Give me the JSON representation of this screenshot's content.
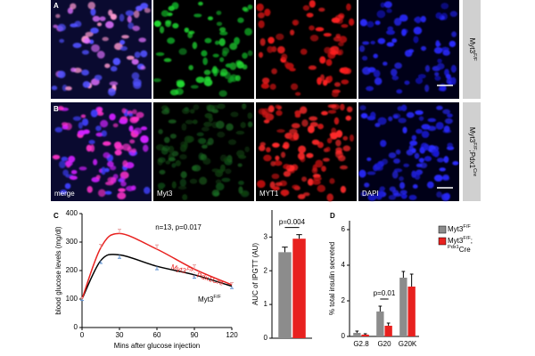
{
  "figure": {
    "panel_letters": [
      "A",
      "B",
      "C",
      "D"
    ],
    "row_labels": [
      [
        "Myt3",
        "F/F"
      ],
      [
        "Myt3",
        "F/F",
        ";Pdx1",
        "Cre"
      ]
    ],
    "channels": [
      "merge",
      "Myt3",
      "MYT1",
      "DAPI"
    ]
  },
  "chart_data": [
    {
      "type": "line",
      "xlabel": "Mins after glucose injection",
      "ylabel": "blood glucose levels (mg/dl)",
      "annotations": [
        [
          "n=13, p=0.017"
        ],
        [
          "Myt3",
          "F/F",
          "; Pdx1Cre"
        ],
        [
          "Myt3",
          "F/F"
        ]
      ],
      "x": [
        0,
        15,
        30,
        60,
        90,
        120
      ],
      "series": [
        {
          "name": [
            "Myt3",
            "F/F"
          ],
          "color": "#000000",
          "values": [
            100,
            235,
            255,
            215,
            185,
            145
          ],
          "errors": [
            5,
            10,
            12,
            12,
            12,
            8
          ]
        },
        {
          "name": [
            "Myt3",
            "F/F",
            "; Pdx1Cre"
          ],
          "color": "#e8211f",
          "values": [
            100,
            280,
            330,
            275,
            205,
            150
          ],
          "errors": [
            5,
            12,
            15,
            15,
            15,
            8
          ]
        }
      ],
      "xlim": [
        0,
        120
      ],
      "xticks": [
        0,
        30,
        60,
        90,
        120
      ],
      "ylim": [
        0,
        400
      ],
      "yticks": [
        0,
        100,
        200,
        300,
        400
      ]
    },
    {
      "type": "bar",
      "ylabel": "AUC of IPGTT (AU)",
      "annotations": [
        [
          "p=0.004"
        ]
      ],
      "categories": [
        null
      ],
      "series": [
        {
          "name": [
            "Myt3",
            "F/F"
          ],
          "color": "#8c8c8c",
          "values": [
            2.55
          ],
          "errors": [
            0.15
          ]
        },
        {
          "name": [
            "Myt3",
            "F/F",
            ";Pdx1",
            "Cre"
          ],
          "color": "#e8211f",
          "values": [
            2.95
          ],
          "errors": [
            0.12
          ]
        }
      ],
      "ylim": [
        0,
        3.8
      ],
      "yticks": [
        0,
        1,
        2,
        3
      ]
    },
    {
      "type": "bar",
      "ylabel": "% total insulin secreted",
      "annotations": [
        [
          "p=0.01"
        ]
      ],
      "legend": true,
      "categories": [
        "G2.8",
        "G20",
        "G20K"
      ],
      "series": [
        {
          "name": [
            "Myt3",
            "F/F"
          ],
          "color": "#8c8c8c",
          "values": [
            0.2,
            1.4,
            3.3
          ],
          "errors": [
            0.1,
            0.3,
            0.35
          ]
        },
        {
          "name": [
            "Myt3",
            "F/F",
            ";",
            "Pdx1",
            "Cre"
          ],
          "color": "#e8211f",
          "values": [
            0.1,
            0.6,
            2.8
          ],
          "errors": [
            0.05,
            0.15,
            0.7
          ]
        }
      ],
      "ylim": [
        0,
        6.5
      ],
      "yticks": [
        0,
        2,
        4,
        6
      ]
    }
  ]
}
